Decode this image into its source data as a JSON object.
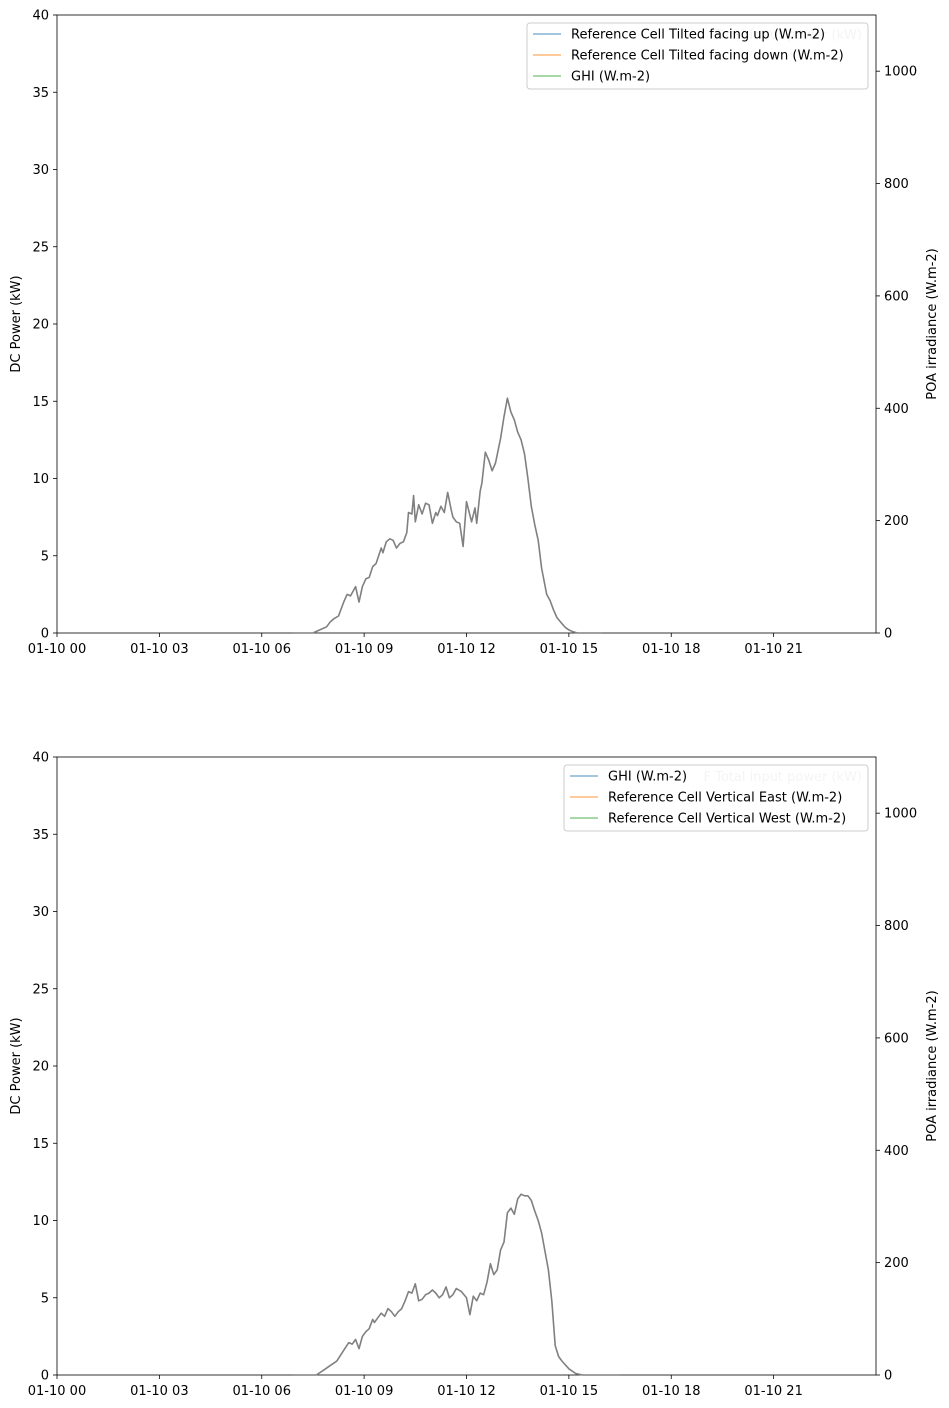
{
  "chart_data": [
    {
      "type": "line",
      "ylabel": "DC Power (kW)",
      "y2label": "POA irradiance (W.m-2)",
      "ylim": [
        0,
        40
      ],
      "y2lim": [
        0,
        1100
      ],
      "xlim": [
        0,
        24
      ],
      "yticks": [
        "0",
        "5",
        "10",
        "15",
        "20",
        "25",
        "30",
        "35",
        "40"
      ],
      "y2ticks": [
        "0",
        "200",
        "400",
        "600",
        "800",
        "1000"
      ],
      "xticks": [
        {
          "v": 0,
          "label": "01-10 00"
        },
        {
          "v": 3,
          "label": "01-10 03"
        },
        {
          "v": 6,
          "label": "01-10 06"
        },
        {
          "v": 9,
          "label": "01-10 09"
        },
        {
          "v": 12,
          "label": "01-10 12"
        },
        {
          "v": 15,
          "label": "01-10 15"
        },
        {
          "v": 18,
          "label": "01-10 18"
        },
        {
          "v": 21,
          "label": "01-10 21"
        }
      ],
      "legend": {
        "placement": "top-right",
        "background_text": "Total input power (kW)",
        "entries": [
          {
            "name": "Reference Cell Tilted facing up (W.m-2)",
            "color": "#1f77b4"
          },
          {
            "name": "Reference Cell Tilted facing down (W.m-2)",
            "color": "#ff7f0e"
          },
          {
            "name": "GHI (W.m-2)",
            "color": "#2ca02c"
          }
        ]
      },
      "series": [
        {
          "color": "#808080",
          "x": [
            6.9,
            7.5,
            7.7,
            7.9,
            8.0,
            8.1,
            8.25,
            8.4,
            8.5,
            8.6,
            8.75,
            8.8,
            8.85,
            8.95,
            9.05,
            9.15,
            9.25,
            9.35,
            9.5,
            9.55,
            9.65,
            9.75,
            9.85,
            9.95,
            10.05,
            10.15,
            10.25,
            10.3,
            10.4,
            10.45,
            10.5,
            10.6,
            10.7,
            10.8,
            10.9,
            11.0,
            11.1,
            11.15,
            11.25,
            11.35,
            11.45,
            11.55,
            11.6,
            11.7,
            11.8,
            11.9,
            12.0,
            12.15,
            12.25,
            12.3,
            12.4,
            12.45,
            12.55,
            12.65,
            12.75,
            12.85,
            13.0,
            13.1,
            13.2,
            13.3,
            13.4,
            13.5,
            13.6,
            13.7,
            13.8,
            13.9,
            14.0,
            14.1,
            14.2,
            14.35,
            14.45,
            14.55,
            14.65,
            14.8,
            14.9,
            15.0,
            15.1,
            15.25,
            15.4,
            16.0
          ],
          "y": [
            0,
            0,
            0.2,
            0.4,
            0.7,
            0.9,
            1.1,
            2.0,
            2.5,
            2.4,
            3.0,
            2.5,
            2.0,
            3.0,
            3.5,
            3.6,
            4.3,
            4.5,
            5.5,
            5.2,
            5.9,
            6.1,
            6.0,
            5.5,
            5.8,
            5.9,
            6.5,
            7.8,
            7.7,
            8.9,
            7.2,
            8.3,
            7.7,
            8.4,
            8.3,
            7.1,
            7.8,
            7.6,
            8.2,
            7.8,
            9.1,
            8.0,
            7.5,
            7.2,
            7.1,
            5.6,
            8.5,
            7.2,
            8.1,
            7.1,
            9.2,
            9.7,
            11.7,
            11.2,
            10.5,
            11.0,
            12.6,
            14.0,
            15.2,
            14.3,
            13.8,
            13.0,
            12.5,
            11.6,
            10.0,
            8.2,
            7.0,
            6.0,
            4.2,
            2.5,
            2.1,
            1.5,
            1.0,
            0.6,
            0.35,
            0.2,
            0.1,
            0,
            0,
            0
          ]
        }
      ]
    },
    {
      "type": "line",
      "ylabel": "DC Power (kW)",
      "y2label": "POA irradiance (W.m-2)",
      "ylim": [
        0,
        40
      ],
      "y2lim": [
        0,
        1100
      ],
      "xlim": [
        0,
        24
      ],
      "yticks": [
        "0",
        "5",
        "10",
        "15",
        "20",
        "25",
        "30",
        "35",
        "40"
      ],
      "y2ticks": [
        "0",
        "200",
        "400",
        "600",
        "800",
        "1000"
      ],
      "xticks": [
        {
          "v": 0,
          "label": "01-10 00"
        },
        {
          "v": 3,
          "label": "01-10 03"
        },
        {
          "v": 6,
          "label": "01-10 06"
        },
        {
          "v": 9,
          "label": "01-10 09"
        },
        {
          "v": 12,
          "label": "01-10 12"
        },
        {
          "v": 15,
          "label": "01-10 15"
        },
        {
          "v": 18,
          "label": "01-10 18"
        },
        {
          "v": 21,
          "label": "01-10 21"
        }
      ],
      "legend": {
        "placement": "top-right",
        "background_text": "F Total input power (kW)",
        "entries": [
          {
            "name": "GHI (W.m-2)",
            "color": "#1f77b4"
          },
          {
            "name": "Reference Cell Vertical East (W.m-2)",
            "color": "#ff7f0e"
          },
          {
            "name": "Reference Cell Vertical West (W.m-2)",
            "color": "#2ca02c"
          }
        ]
      },
      "series": [
        {
          "color": "#808080",
          "x": [
            6.9,
            7.6,
            7.8,
            8.0,
            8.2,
            8.4,
            8.55,
            8.65,
            8.75,
            8.85,
            8.95,
            9.05,
            9.15,
            9.25,
            9.3,
            9.4,
            9.5,
            9.6,
            9.7,
            9.8,
            9.9,
            10.0,
            10.1,
            10.2,
            10.3,
            10.4,
            10.5,
            10.6,
            10.7,
            10.8,
            10.9,
            11.0,
            11.1,
            11.2,
            11.3,
            11.4,
            11.5,
            11.6,
            11.7,
            11.85,
            12.0,
            12.1,
            12.2,
            12.3,
            12.4,
            12.5,
            12.6,
            12.7,
            12.8,
            12.9,
            13.0,
            13.1,
            13.2,
            13.3,
            13.4,
            13.5,
            13.6,
            13.7,
            13.8,
            13.9,
            14.0,
            14.1,
            14.2,
            14.3,
            14.4,
            14.5,
            14.6,
            14.7,
            14.8,
            15.0,
            15.2,
            15.4,
            16.5
          ],
          "y": [
            0,
            0,
            0.3,
            0.6,
            0.9,
            1.6,
            2.1,
            2.0,
            2.3,
            1.7,
            2.5,
            2.8,
            3.0,
            3.6,
            3.4,
            3.7,
            4.0,
            3.8,
            4.3,
            4.1,
            3.8,
            4.1,
            4.3,
            4.8,
            5.4,
            5.3,
            5.9,
            4.8,
            4.9,
            5.2,
            5.3,
            5.5,
            5.3,
            5.0,
            5.2,
            5.7,
            5.0,
            5.2,
            5.6,
            5.4,
            5.0,
            3.9,
            5.1,
            4.8,
            5.3,
            5.2,
            6.0,
            7.2,
            6.5,
            6.8,
            8.1,
            8.6,
            10.5,
            10.8,
            10.4,
            11.4,
            11.7,
            11.6,
            11.6,
            11.3,
            10.6,
            10.0,
            9.2,
            8.0,
            6.8,
            4.8,
            1.9,
            1.2,
            0.9,
            0.4,
            0.1,
            0,
            0
          ]
        }
      ]
    }
  ]
}
